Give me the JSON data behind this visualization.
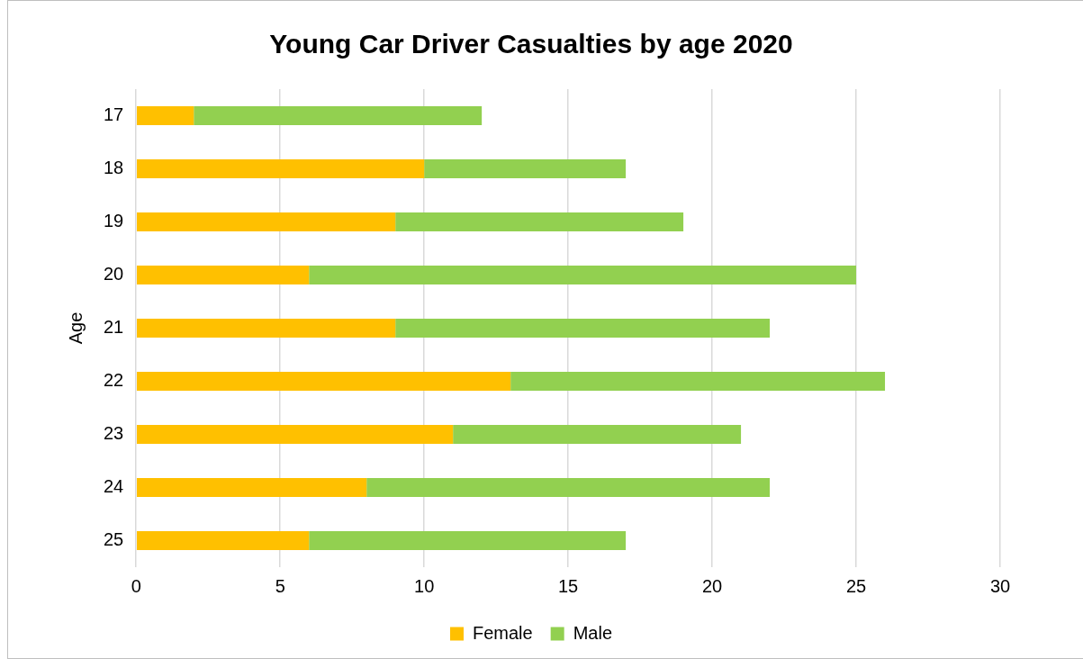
{
  "chart_data": {
    "type": "bar",
    "orientation": "horizontal",
    "stacked": true,
    "title": "Young Car Driver Casualties by age 2020",
    "ylabel": "Age",
    "categories": [
      "17",
      "18",
      "19",
      "20",
      "21",
      "22",
      "23",
      "24",
      "25"
    ],
    "series": [
      {
        "name": "Female",
        "color": "#ffc000",
        "values": [
          2,
          10,
          9,
          6,
          9,
          13,
          11,
          8,
          6
        ]
      },
      {
        "name": "Male",
        "color": "#92d050",
        "values": [
          10,
          7,
          10,
          19,
          13,
          13,
          10,
          14,
          11
        ]
      }
    ],
    "xlim": [
      0,
      30
    ],
    "xticks": [
      0,
      5,
      10,
      15,
      20,
      25,
      30
    ],
    "grid": "x",
    "legend": "bottom"
  }
}
